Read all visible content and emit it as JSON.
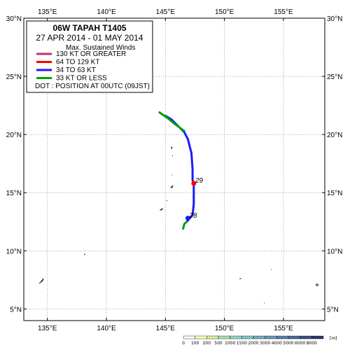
{
  "map": {
    "lat_range": [
      4,
      30
    ],
    "lon_range": [
      133,
      158.5
    ],
    "lon_ticks": [
      135,
      140,
      145,
      150,
      155
    ],
    "lat_ticks": [
      5,
      10,
      15,
      20,
      25,
      30
    ],
    "lon_labels": [
      "135°E",
      "140°E",
      "145°E",
      "150°E",
      "155°E"
    ],
    "lat_labels": [
      "5°N",
      "10°N",
      "15°N",
      "20°N",
      "25°N",
      "30°N"
    ],
    "grid": true
  },
  "legend": {
    "title": "06W  TAPAH  T1405",
    "dates": "27 APR 2014 - 01 MAY 2014",
    "winds_heading": "Max. Sustained Winds",
    "items": [
      {
        "label": "130 KT OR GREATER",
        "color": "#c0306a"
      },
      {
        "label": "64 TO 129 KT",
        "color": "#ff0000"
      },
      {
        "label": "34 TO 63 KT",
        "color": "#1a1aff"
      },
      {
        "label": "33 KT OR LESS",
        "color": "#00a000"
      }
    ],
    "dot_note": "DOT : POSITION AT 00UTC (09JST)"
  },
  "track": {
    "segments": [
      {
        "intensity": "33 KT OR LESS",
        "color": "#00a000",
        "points": [
          [
            146.5,
            11.9
          ],
          [
            146.6,
            12.3
          ],
          [
            146.9,
            12.6
          ]
        ]
      },
      {
        "intensity": "34 TO 63 KT",
        "color": "#1a1aff",
        "points": [
          [
            146.9,
            12.6
          ],
          [
            147.3,
            13.1
          ],
          [
            147.4,
            14.0
          ],
          [
            147.4,
            15.0
          ],
          [
            147.4,
            15.8
          ]
        ]
      },
      {
        "intensity": "64 TO 129 KT",
        "color": "#ff0000",
        "points": [
          [
            147.4,
            15.8
          ],
          [
            147.3,
            16.1
          ]
        ]
      },
      {
        "intensity": "34 TO 63 KT",
        "color": "#1a1aff",
        "points": [
          [
            147.3,
            16.1
          ],
          [
            147.3,
            17.0
          ],
          [
            147.2,
            18.4
          ],
          [
            146.9,
            19.6
          ],
          [
            146.6,
            20.2
          ],
          [
            146.0,
            20.8
          ],
          [
            145.5,
            21.3
          ],
          [
            145.0,
            21.6
          ]
        ]
      },
      {
        "intensity": "33 KT OR LESS",
        "color": "#00a000",
        "points": [
          [
            146.6,
            20.3
          ],
          [
            145.8,
            20.9
          ],
          [
            145.2,
            21.4
          ],
          [
            144.5,
            21.9
          ]
        ]
      }
    ],
    "dots": [
      {
        "lon": 147.4,
        "lat": 15.8,
        "label": "29",
        "color": "#ff0000"
      },
      {
        "lon": 146.9,
        "lat": 12.8,
        "label": "28",
        "color": "#1a1aff"
      }
    ]
  },
  "colorbar": {
    "unit": "[m]",
    "labels": [
      "0",
      "100",
      "200",
      "500",
      "1000",
      "1500",
      "2000",
      "3000",
      "4000",
      "5000",
      "6000",
      "8000"
    ],
    "colors": [
      "#ffffff",
      "#ffffc0",
      "#e0f0a0",
      "#b0e0b0",
      "#90d8c0",
      "#80c8c8",
      "#70b0c0",
      "#6898b8",
      "#5880a8",
      "#486898",
      "#385080",
      "#2a3868"
    ]
  }
}
